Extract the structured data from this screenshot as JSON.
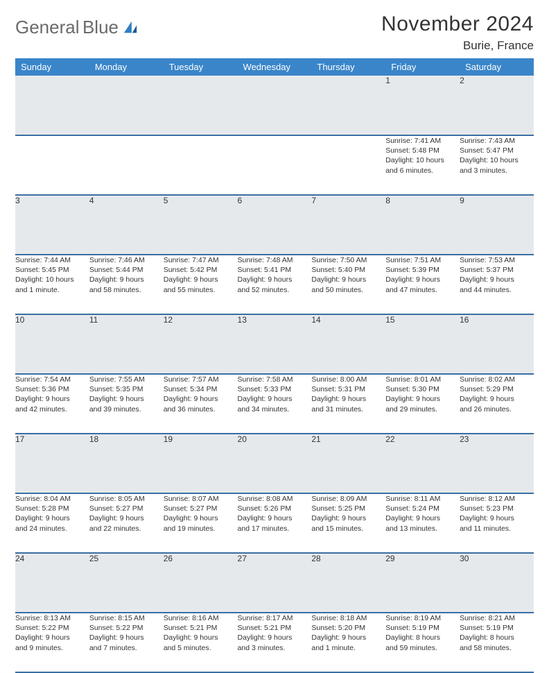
{
  "brand": {
    "line1": "General",
    "line2": "Blue"
  },
  "title": "November 2024",
  "location": "Burie, France",
  "colors": {
    "header_bg": "#3a85c9",
    "header_text": "#ffffff",
    "daynum_bg": "#e6e9ec",
    "row_divider": "#3a6fa3",
    "brand_gray": "#6a6a6a",
    "brand_blue": "#2f7fc1",
    "text": "#333333"
  },
  "weekdays": [
    "Sunday",
    "Monday",
    "Tuesday",
    "Wednesday",
    "Thursday",
    "Friday",
    "Saturday"
  ],
  "weeks": [
    [
      {
        "n": "",
        "lines": [
          "",
          "",
          "",
          ""
        ]
      },
      {
        "n": "",
        "lines": [
          "",
          "",
          "",
          ""
        ]
      },
      {
        "n": "",
        "lines": [
          "",
          "",
          "",
          ""
        ]
      },
      {
        "n": "",
        "lines": [
          "",
          "",
          "",
          ""
        ]
      },
      {
        "n": "",
        "lines": [
          "",
          "",
          "",
          ""
        ]
      },
      {
        "n": "1",
        "lines": [
          "Sunrise: 7:41 AM",
          "Sunset: 5:48 PM",
          "Daylight: 10 hours",
          "and 6 minutes."
        ]
      },
      {
        "n": "2",
        "lines": [
          "Sunrise: 7:43 AM",
          "Sunset: 5:47 PM",
          "Daylight: 10 hours",
          "and 3 minutes."
        ]
      }
    ],
    [
      {
        "n": "3",
        "lines": [
          "Sunrise: 7:44 AM",
          "Sunset: 5:45 PM",
          "Daylight: 10 hours",
          "and 1 minute."
        ]
      },
      {
        "n": "4",
        "lines": [
          "Sunrise: 7:46 AM",
          "Sunset: 5:44 PM",
          "Daylight: 9 hours",
          "and 58 minutes."
        ]
      },
      {
        "n": "5",
        "lines": [
          "Sunrise: 7:47 AM",
          "Sunset: 5:42 PM",
          "Daylight: 9 hours",
          "and 55 minutes."
        ]
      },
      {
        "n": "6",
        "lines": [
          "Sunrise: 7:48 AM",
          "Sunset: 5:41 PM",
          "Daylight: 9 hours",
          "and 52 minutes."
        ]
      },
      {
        "n": "7",
        "lines": [
          "Sunrise: 7:50 AM",
          "Sunset: 5:40 PM",
          "Daylight: 9 hours",
          "and 50 minutes."
        ]
      },
      {
        "n": "8",
        "lines": [
          "Sunrise: 7:51 AM",
          "Sunset: 5:39 PM",
          "Daylight: 9 hours",
          "and 47 minutes."
        ]
      },
      {
        "n": "9",
        "lines": [
          "Sunrise: 7:53 AM",
          "Sunset: 5:37 PM",
          "Daylight: 9 hours",
          "and 44 minutes."
        ]
      }
    ],
    [
      {
        "n": "10",
        "lines": [
          "Sunrise: 7:54 AM",
          "Sunset: 5:36 PM",
          "Daylight: 9 hours",
          "and 42 minutes."
        ]
      },
      {
        "n": "11",
        "lines": [
          "Sunrise: 7:55 AM",
          "Sunset: 5:35 PM",
          "Daylight: 9 hours",
          "and 39 minutes."
        ]
      },
      {
        "n": "12",
        "lines": [
          "Sunrise: 7:57 AM",
          "Sunset: 5:34 PM",
          "Daylight: 9 hours",
          "and 36 minutes."
        ]
      },
      {
        "n": "13",
        "lines": [
          "Sunrise: 7:58 AM",
          "Sunset: 5:33 PM",
          "Daylight: 9 hours",
          "and 34 minutes."
        ]
      },
      {
        "n": "14",
        "lines": [
          "Sunrise: 8:00 AM",
          "Sunset: 5:31 PM",
          "Daylight: 9 hours",
          "and 31 minutes."
        ]
      },
      {
        "n": "15",
        "lines": [
          "Sunrise: 8:01 AM",
          "Sunset: 5:30 PM",
          "Daylight: 9 hours",
          "and 29 minutes."
        ]
      },
      {
        "n": "16",
        "lines": [
          "Sunrise: 8:02 AM",
          "Sunset: 5:29 PM",
          "Daylight: 9 hours",
          "and 26 minutes."
        ]
      }
    ],
    [
      {
        "n": "17",
        "lines": [
          "Sunrise: 8:04 AM",
          "Sunset: 5:28 PM",
          "Daylight: 9 hours",
          "and 24 minutes."
        ]
      },
      {
        "n": "18",
        "lines": [
          "Sunrise: 8:05 AM",
          "Sunset: 5:27 PM",
          "Daylight: 9 hours",
          "and 22 minutes."
        ]
      },
      {
        "n": "19",
        "lines": [
          "Sunrise: 8:07 AM",
          "Sunset: 5:27 PM",
          "Daylight: 9 hours",
          "and 19 minutes."
        ]
      },
      {
        "n": "20",
        "lines": [
          "Sunrise: 8:08 AM",
          "Sunset: 5:26 PM",
          "Daylight: 9 hours",
          "and 17 minutes."
        ]
      },
      {
        "n": "21",
        "lines": [
          "Sunrise: 8:09 AM",
          "Sunset: 5:25 PM",
          "Daylight: 9 hours",
          "and 15 minutes."
        ]
      },
      {
        "n": "22",
        "lines": [
          "Sunrise: 8:11 AM",
          "Sunset: 5:24 PM",
          "Daylight: 9 hours",
          "and 13 minutes."
        ]
      },
      {
        "n": "23",
        "lines": [
          "Sunrise: 8:12 AM",
          "Sunset: 5:23 PM",
          "Daylight: 9 hours",
          "and 11 minutes."
        ]
      }
    ],
    [
      {
        "n": "24",
        "lines": [
          "Sunrise: 8:13 AM",
          "Sunset: 5:22 PM",
          "Daylight: 9 hours",
          "and 9 minutes."
        ]
      },
      {
        "n": "25",
        "lines": [
          "Sunrise: 8:15 AM",
          "Sunset: 5:22 PM",
          "Daylight: 9 hours",
          "and 7 minutes."
        ]
      },
      {
        "n": "26",
        "lines": [
          "Sunrise: 8:16 AM",
          "Sunset: 5:21 PM",
          "Daylight: 9 hours",
          "and 5 minutes."
        ]
      },
      {
        "n": "27",
        "lines": [
          "Sunrise: 8:17 AM",
          "Sunset: 5:21 PM",
          "Daylight: 9 hours",
          "and 3 minutes."
        ]
      },
      {
        "n": "28",
        "lines": [
          "Sunrise: 8:18 AM",
          "Sunset: 5:20 PM",
          "Daylight: 9 hours",
          "and 1 minute."
        ]
      },
      {
        "n": "29",
        "lines": [
          "Sunrise: 8:19 AM",
          "Sunset: 5:19 PM",
          "Daylight: 8 hours",
          "and 59 minutes."
        ]
      },
      {
        "n": "30",
        "lines": [
          "Sunrise: 8:21 AM",
          "Sunset: 5:19 PM",
          "Daylight: 8 hours",
          "and 58 minutes."
        ]
      }
    ]
  ]
}
